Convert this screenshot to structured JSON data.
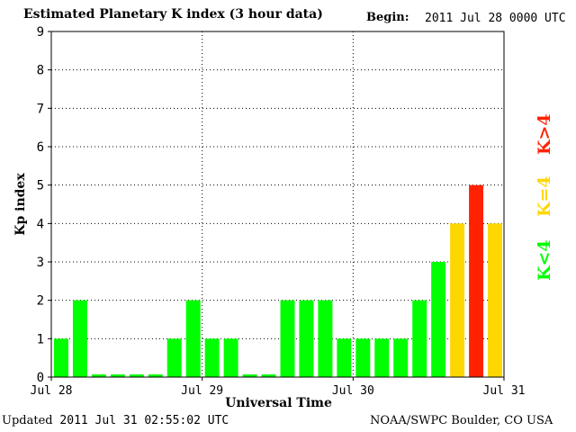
{
  "header": {
    "title": "Estimated Planetary K index (3 hour data)",
    "begin_label": "Begin:",
    "begin_value": "2011 Jul 28 0000 UTC"
  },
  "footer": {
    "updated_label": "Updated",
    "updated_value": "2011 Jul 31 02:55:02 UTC",
    "source": "NOAA/SWPC Boulder, CO USA"
  },
  "legend": {
    "low": "K<4",
    "mid": "K=4",
    "high": "K>4"
  },
  "colors": {
    "low": "#00ff00",
    "mid": "#ffd700",
    "high": "#ff2200"
  },
  "chart_data": {
    "type": "bar",
    "ylabel": "Kp index",
    "xlabel": "Universal Time",
    "ylim": [
      0,
      9
    ],
    "yticks": [
      0,
      1,
      2,
      3,
      4,
      5,
      6,
      7,
      8,
      9
    ],
    "xticks": [
      "Jul 28",
      "Jul 29",
      "Jul 30",
      "Jul 31"
    ],
    "grid": true,
    "values": [
      1,
      2,
      0.07,
      0.07,
      0.07,
      0.07,
      1,
      2,
      1,
      1,
      0.07,
      0.07,
      2,
      2,
      2,
      1,
      1,
      1,
      1,
      2,
      3,
      4,
      5,
      4
    ]
  }
}
